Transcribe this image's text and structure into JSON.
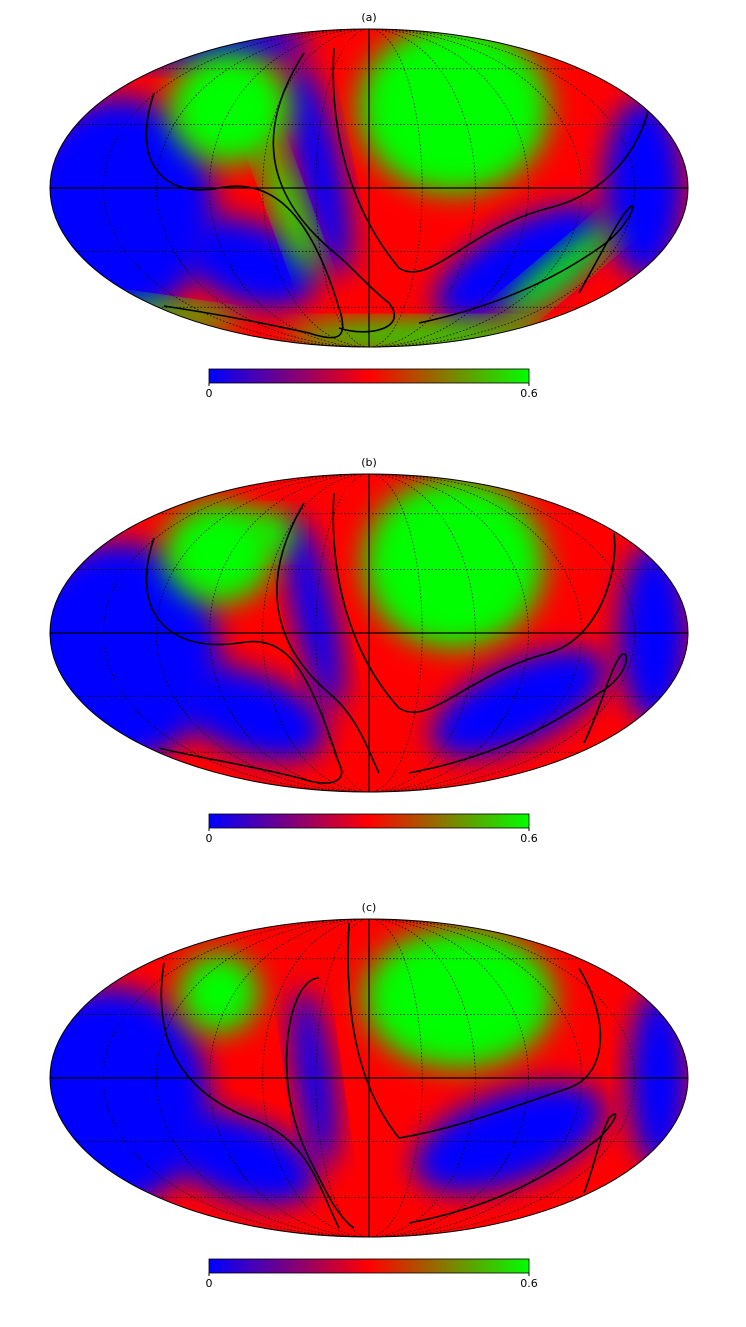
{
  "panels": [
    {
      "label": "(a)",
      "colorbar": {
        "lim": [
          0,
          0.6
        ],
        "ticks": [
          0,
          0.6
        ]
      }
    },
    {
      "label": "(b)",
      "colorbar": {
        "lim": [
          0,
          0.6
        ],
        "ticks": [
          0,
          0.6
        ]
      }
    },
    {
      "label": "(c)",
      "colorbar": {
        "lim": [
          0,
          0.6
        ],
        "ticks": [
          0,
          0.6
        ]
      }
    }
  ]
}
